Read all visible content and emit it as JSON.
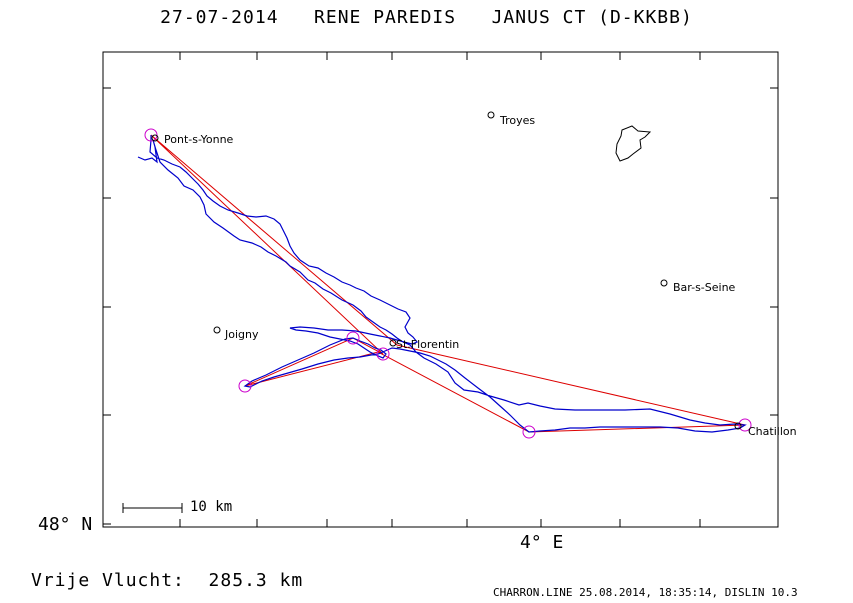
{
  "title": "27-07-2014   RENE PAREDIS   JANUS CT (D-KKBB)",
  "axes": {
    "lat_label": "48° N",
    "lon_label": "4° E"
  },
  "scale": {
    "label": "10 km"
  },
  "distance_label": "Vrije Vlucht:  285.3 km",
  "footer": "CHARRON.LINE 25.08.2014, 18:35:14, DISLIN 10.3",
  "places": {
    "troyes": "Troyes",
    "pont_s_yonne": "Pont-s-Yonne",
    "bar_s_seine": "Bar-s-Seine",
    "joigny": "Joigny",
    "st_florentin": "St.Florentin",
    "chatillon": "Chatillon"
  },
  "colors": {
    "track": "#0000cc",
    "task_line": "#dd0000",
    "turnpoint": "#cc00cc",
    "frame": "#000000"
  }
}
